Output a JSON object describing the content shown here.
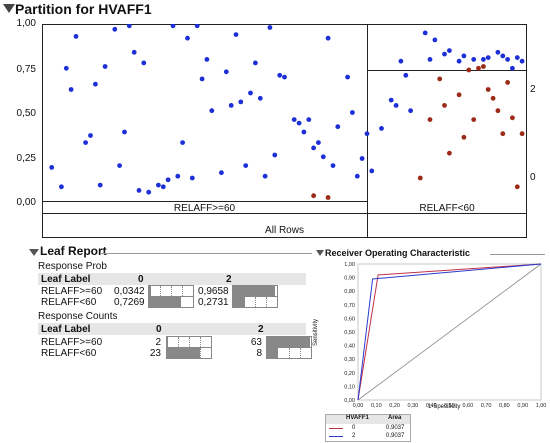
{
  "partition": {
    "title": "Partition for HVAFF1",
    "y_ticks": [
      "1,00",
      "0,75",
      "0,50",
      "0,25",
      "0,00"
    ],
    "right_ticks": [
      "2",
      "0"
    ],
    "left_split_label": "RELAFF>=60",
    "right_split_label": "RELAFF<60",
    "all_rows_label": "All Rows",
    "blue": "#1d2fd6",
    "red": "#9b2b17"
  },
  "leaf_report": {
    "title": "Leaf Report",
    "prob_title": "Response Prob",
    "counts_title": "Response Counts",
    "header_label": "Leaf Label",
    "header_0": "0",
    "header_2": "2",
    "prob_rows": [
      {
        "label": "RELAFF>=60",
        "p0": "0,0342",
        "p2": "0,9658",
        "f0": 0.0342,
        "f2": 0.9658
      },
      {
        "label": "RELAFF<60",
        "p0": "0,7269",
        "p2": "0,2731",
        "f0": 0.7269,
        "f2": 0.2731
      }
    ],
    "count_rows": [
      {
        "label": "RELAFF>=60",
        "c0": "2",
        "c2": "63",
        "f0": 0.03,
        "f2": 0.97
      },
      {
        "label": "RELAFF<60",
        "c0": "23",
        "c2": "8",
        "f0": 0.74,
        "f2": 0.26
      }
    ]
  },
  "roc": {
    "title": "Receiver Operating Characteristic",
    "ylabel": "Sensitivity",
    "xlabel": "1-Specificity",
    "legend_header_name": "HVAFF1",
    "legend_header_area": "Area",
    "legend_rows": [
      {
        "name": "0",
        "area": "0,9037",
        "color": "#c0304a"
      },
      {
        "name": "2",
        "area": "0,9037",
        "color": "#2a3bd0"
      }
    ]
  },
  "chart_data": [
    {
      "type": "scatter",
      "title": "Partition for HVAFF1",
      "xlabel": "",
      "ylabel": "",
      "ylim": [
        0,
        1
      ],
      "split_labels": [
        "RELAFF>=60",
        "RELAFF<60"
      ],
      "right_axis_labels": [
        "2",
        "0"
      ],
      "series": [
        {
          "name": "2",
          "color": "#1d2fd6",
          "points": [
            [
              0.02,
              0.19
            ],
            [
              0.04,
              0.08
            ],
            [
              0.05,
              0.75
            ],
            [
              0.06,
              0.63
            ],
            [
              0.07,
              0.93
            ],
            [
              0.09,
              0.33
            ],
            [
              0.1,
              0.37
            ],
            [
              0.11,
              0.66
            ],
            [
              0.12,
              0.09
            ],
            [
              0.13,
              0.76
            ],
            [
              0.15,
              0.97
            ],
            [
              0.16,
              0.2
            ],
            [
              0.17,
              0.39
            ],
            [
              0.18,
              0.99
            ],
            [
              0.19,
              0.84
            ],
            [
              0.2,
              0.06
            ],
            [
              0.21,
              0.78
            ],
            [
              0.22,
              0.05
            ],
            [
              0.24,
              0.09
            ],
            [
              0.25,
              0.08
            ],
            [
              0.26,
              0.12
            ],
            [
              0.27,
              0.99
            ],
            [
              0.28,
              0.14
            ],
            [
              0.29,
              0.33
            ],
            [
              0.3,
              0.92
            ],
            [
              0.31,
              0.13
            ],
            [
              0.32,
              0.99
            ],
            [
              0.33,
              0.69
            ],
            [
              0.34,
              0.8
            ],
            [
              0.35,
              0.51
            ],
            [
              0.37,
              0.16
            ],
            [
              0.38,
              0.73
            ],
            [
              0.39,
              0.54
            ],
            [
              0.4,
              0.94
            ],
            [
              0.41,
              0.56
            ],
            [
              0.42,
              0.2
            ],
            [
              0.43,
              0.61
            ],
            [
              0.44,
              0.78
            ],
            [
              0.45,
              0.58
            ],
            [
              0.46,
              0.14
            ],
            [
              0.47,
              0.98
            ],
            [
              0.48,
              0.26
            ],
            [
              0.49,
              0.71
            ],
            [
              0.5,
              0.7
            ],
            [
              0.52,
              0.46
            ],
            [
              0.53,
              0.44
            ],
            [
              0.54,
              0.39
            ],
            [
              0.55,
              0.46
            ],
            [
              0.56,
              0.3
            ],
            [
              0.57,
              0.33
            ],
            [
              0.58,
              0.25
            ],
            [
              0.59,
              0.92
            ],
            [
              0.6,
              0.2
            ],
            [
              0.61,
              0.42
            ],
            [
              0.63,
              0.7
            ],
            [
              0.64,
              0.5
            ],
            [
              0.65,
              0.14
            ],
            [
              0.66,
              0.24
            ],
            [
              0.67,
              0.38
            ],
            [
              0.68,
              0.17
            ],
            [
              0.7,
              0.41
            ],
            [
              0.72,
              0.57
            ],
            [
              0.73,
              0.54
            ],
            [
              0.74,
              0.79
            ],
            [
              0.75,
              0.71
            ],
            [
              0.76,
              0.51
            ],
            [
              0.79,
              0.95
            ],
            [
              0.81,
              0.91
            ],
            [
              0.84,
              0.85
            ],
            [
              0.87,
              0.82
            ],
            [
              0.91,
              0.8
            ],
            [
              0.94,
              0.84
            ],
            [
              0.97,
              0.75
            ],
            [
              0.99,
              0.79
            ],
            [
              0.8,
              0.8
            ],
            [
              0.86,
              0.79
            ],
            [
              0.89,
              0.8
            ],
            [
              0.92,
              0.81
            ],
            [
              0.95,
              0.82
            ],
            [
              0.98,
              0.81
            ],
            [
              0.83,
              0.83
            ],
            [
              0.96,
              0.8
            ]
          ]
        },
        {
          "name": "0",
          "color": "#9b2b17",
          "points": [
            [
              0.56,
              0.03
            ],
            [
              0.59,
              0.02
            ],
            [
              0.78,
              0.13
            ],
            [
              0.8,
              0.46
            ],
            [
              0.82,
              0.69
            ],
            [
              0.83,
              0.54
            ],
            [
              0.84,
              0.27
            ],
            [
              0.86,
              0.6
            ],
            [
              0.87,
              0.36
            ],
            [
              0.88,
              0.74
            ],
            [
              0.89,
              0.46
            ],
            [
              0.9,
              0.75
            ],
            [
              0.91,
              0.76
            ],
            [
              0.92,
              0.63
            ],
            [
              0.93,
              0.58
            ],
            [
              0.94,
              0.51
            ],
            [
              0.95,
              0.38
            ],
            [
              0.96,
              0.67
            ],
            [
              0.97,
              0.47
            ],
            [
              0.98,
              0.08
            ],
            [
              0.99,
              0.38
            ]
          ]
        }
      ]
    },
    {
      "type": "line",
      "title": "Receiver Operating Characteristic",
      "xlabel": "1-Specificity",
      "ylabel": "Sensitivity",
      "xlim": [
        0,
        1
      ],
      "ylim": [
        0,
        1
      ],
      "ticks": [
        "0,00",
        "0,10",
        "0,20",
        "0,30",
        "0,40",
        "0,50",
        "0,60",
        "0,70",
        "0,80",
        "0,90",
        "1,00"
      ],
      "series": [
        {
          "name": "0",
          "color": "#c0304a",
          "x": [
            0,
            0.11,
            1
          ],
          "y": [
            0,
            0.92,
            1
          ]
        },
        {
          "name": "2",
          "color": "#2a3bd0",
          "x": [
            0,
            0.08,
            1
          ],
          "y": [
            0,
            0.89,
            1
          ]
        }
      ]
    }
  ]
}
